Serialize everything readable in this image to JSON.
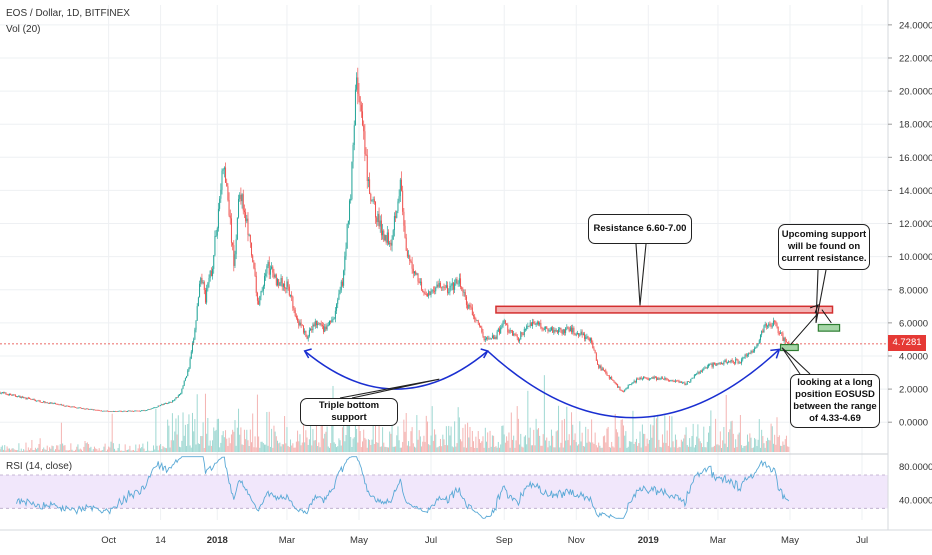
{
  "chart_data": {
    "type": "candlestick",
    "title": "EOS / Dollar, 1D, BITFINEX",
    "volume_label": "Vol (20)",
    "last_price": "4.7281",
    "y_ticks": [
      "24.0000",
      "22.0000",
      "20.0000",
      "18.0000",
      "16.0000",
      "14.0000",
      "12.0000",
      "10.0000",
      "8.0000",
      "6.0000",
      "4.0000",
      "2.0000",
      "0.0000"
    ],
    "y_tick_values": [
      24,
      22,
      20,
      18,
      16,
      14,
      12,
      10,
      8,
      6,
      4,
      2,
      0
    ],
    "x_ticks": [
      "Oct",
      "14",
      "2018",
      "Mar",
      "May",
      "Jul",
      "Sep",
      "Nov",
      "2019",
      "Mar",
      "May",
      "Jul"
    ],
    "x_tick_dates": [
      "2017-10-01",
      "2017-11-14",
      "2018-01-01",
      "2018-03-01",
      "2018-05-01",
      "2018-07-01",
      "2018-09-01",
      "2018-11-01",
      "2019-01-01",
      "2019-03-01",
      "2019-05-01",
      "2019-07-01"
    ],
    "ylim": [
      -1.8,
      25.2
    ],
    "xlim": [
      "2017-07-01",
      "2019-07-23"
    ],
    "price_path": [
      [
        "2017-07-01",
        1.8
      ],
      [
        "2017-08-01",
        1.3
      ],
      [
        "2017-09-01",
        0.9
      ],
      [
        "2017-10-01",
        0.65
      ],
      [
        "2017-11-01",
        0.7
      ],
      [
        "2017-11-25",
        1.3
      ],
      [
        "2017-12-01",
        1.8
      ],
      [
        "2017-12-08",
        3.3
      ],
      [
        "2017-12-13",
        5.5
      ],
      [
        "2017-12-18",
        9.0
      ],
      [
        "2017-12-22",
        7.5
      ],
      [
        "2017-12-28",
        9.5
      ],
      [
        "2018-01-06",
        15.5
      ],
      [
        "2018-01-10",
        13.5
      ],
      [
        "2018-01-15",
        9.5
      ],
      [
        "2018-01-20",
        14.0
      ],
      [
        "2018-01-25",
        12.5
      ],
      [
        "2018-01-31",
        9.5
      ],
      [
        "2018-02-05",
        7.0
      ],
      [
        "2018-02-12",
        9.5
      ],
      [
        "2018-02-20",
        8.6
      ],
      [
        "2018-03-01",
        8.2
      ],
      [
        "2018-03-10",
        6.2
      ],
      [
        "2018-03-18",
        5.1
      ],
      [
        "2018-03-25",
        6.0
      ],
      [
        "2018-04-02",
        5.6
      ],
      [
        "2018-04-10",
        6.3
      ],
      [
        "2018-04-17",
        8.5
      ],
      [
        "2018-04-24",
        14.0
      ],
      [
        "2018-04-29",
        21.0
      ],
      [
        "2018-05-05",
        17.0
      ],
      [
        "2018-05-10",
        13.5
      ],
      [
        "2018-05-15",
        12.8
      ],
      [
        "2018-05-20",
        11.5
      ],
      [
        "2018-05-28",
        11.0
      ],
      [
        "2018-06-05",
        14.5
      ],
      [
        "2018-06-10",
        10.0
      ],
      [
        "2018-06-18",
        9.0
      ],
      [
        "2018-06-28",
        7.5
      ],
      [
        "2018-07-05",
        8.3
      ],
      [
        "2018-07-15",
        8.0
      ],
      [
        "2018-07-25",
        8.5
      ],
      [
        "2018-08-01",
        7.0
      ],
      [
        "2018-08-10",
        6.0
      ],
      [
        "2018-08-15",
        5.0
      ],
      [
        "2018-08-25",
        5.2
      ],
      [
        "2018-09-01",
        6.0
      ],
      [
        "2018-09-05",
        5.5
      ],
      [
        "2018-09-12",
        5.0
      ],
      [
        "2018-09-25",
        6.1
      ],
      [
        "2018-10-10",
        5.6
      ],
      [
        "2018-10-30",
        5.5
      ],
      [
        "2018-11-12",
        5.1
      ],
      [
        "2018-11-20",
        3.4
      ],
      [
        "2018-11-28",
        2.8
      ],
      [
        "2018-12-10",
        1.85
      ],
      [
        "2018-12-18",
        2.4
      ],
      [
        "2018-12-28",
        2.7
      ],
      [
        "2019-01-15",
        2.6
      ],
      [
        "2019-02-01",
        2.3
      ],
      [
        "2019-02-20",
        3.4
      ],
      [
        "2019-03-05",
        3.6
      ],
      [
        "2019-03-20",
        3.7
      ],
      [
        "2019-04-01",
        4.4
      ],
      [
        "2019-04-10",
        5.8
      ],
      [
        "2019-04-18",
        5.9
      ],
      [
        "2019-04-25",
        5.1
      ],
      [
        "2019-04-30",
        4.73
      ]
    ],
    "rsi": {
      "label": "RSI (14, close)",
      "y_ticks": [
        "80.0000",
        "40.0000"
      ],
      "y_tick_values": [
        80,
        40
      ],
      "bands": [
        70,
        30
      ],
      "ylim": [
        16,
        94
      ]
    },
    "annotations": {
      "resistance_label": "Resistance 6.60-7.00",
      "resistance_range": [
        6.6,
        7.0
      ],
      "triple_bottom_label": "Triple bottom support",
      "upcoming_support_label": "Upcoming support will be found on current resistance.",
      "long_position_label": "looking at a long position EOSUSD between the range of 4.33-4.69",
      "long_range": [
        4.33,
        4.69
      ]
    },
    "colors": {
      "up": "#26a69a",
      "down": "#ef5350",
      "resistance": "#d32f2f",
      "support_box": "#a5d6a7",
      "arc": "#1a2fd1",
      "rsi_line": "#5aa9d6",
      "rsi_band": "#f1e7fb"
    }
  }
}
